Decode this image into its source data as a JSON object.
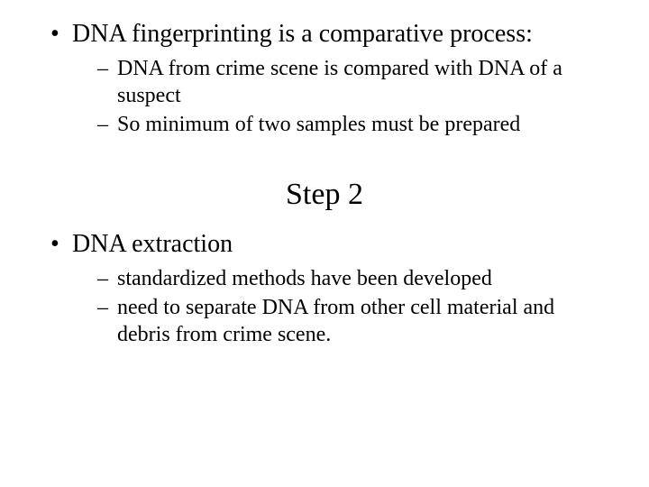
{
  "colors": {
    "background": "#ffffff",
    "text": "#000000"
  },
  "typography": {
    "font_family": "Times New Roman",
    "bullet_l1_size_pt": 28,
    "bullet_l2_size_pt": 24,
    "heading_size_pt": 34
  },
  "block1": {
    "bullet": "DNA fingerprinting is a comparative process:",
    "subs": [
      "DNA from crime scene is compared with DNA of a suspect",
      "So minimum of two samples must be prepared"
    ]
  },
  "heading": "Step 2",
  "block2": {
    "bullet": "DNA extraction",
    "subs": [
      "standardized methods have been developed",
      "need to separate DNA from other cell material and debris from crime scene."
    ]
  }
}
